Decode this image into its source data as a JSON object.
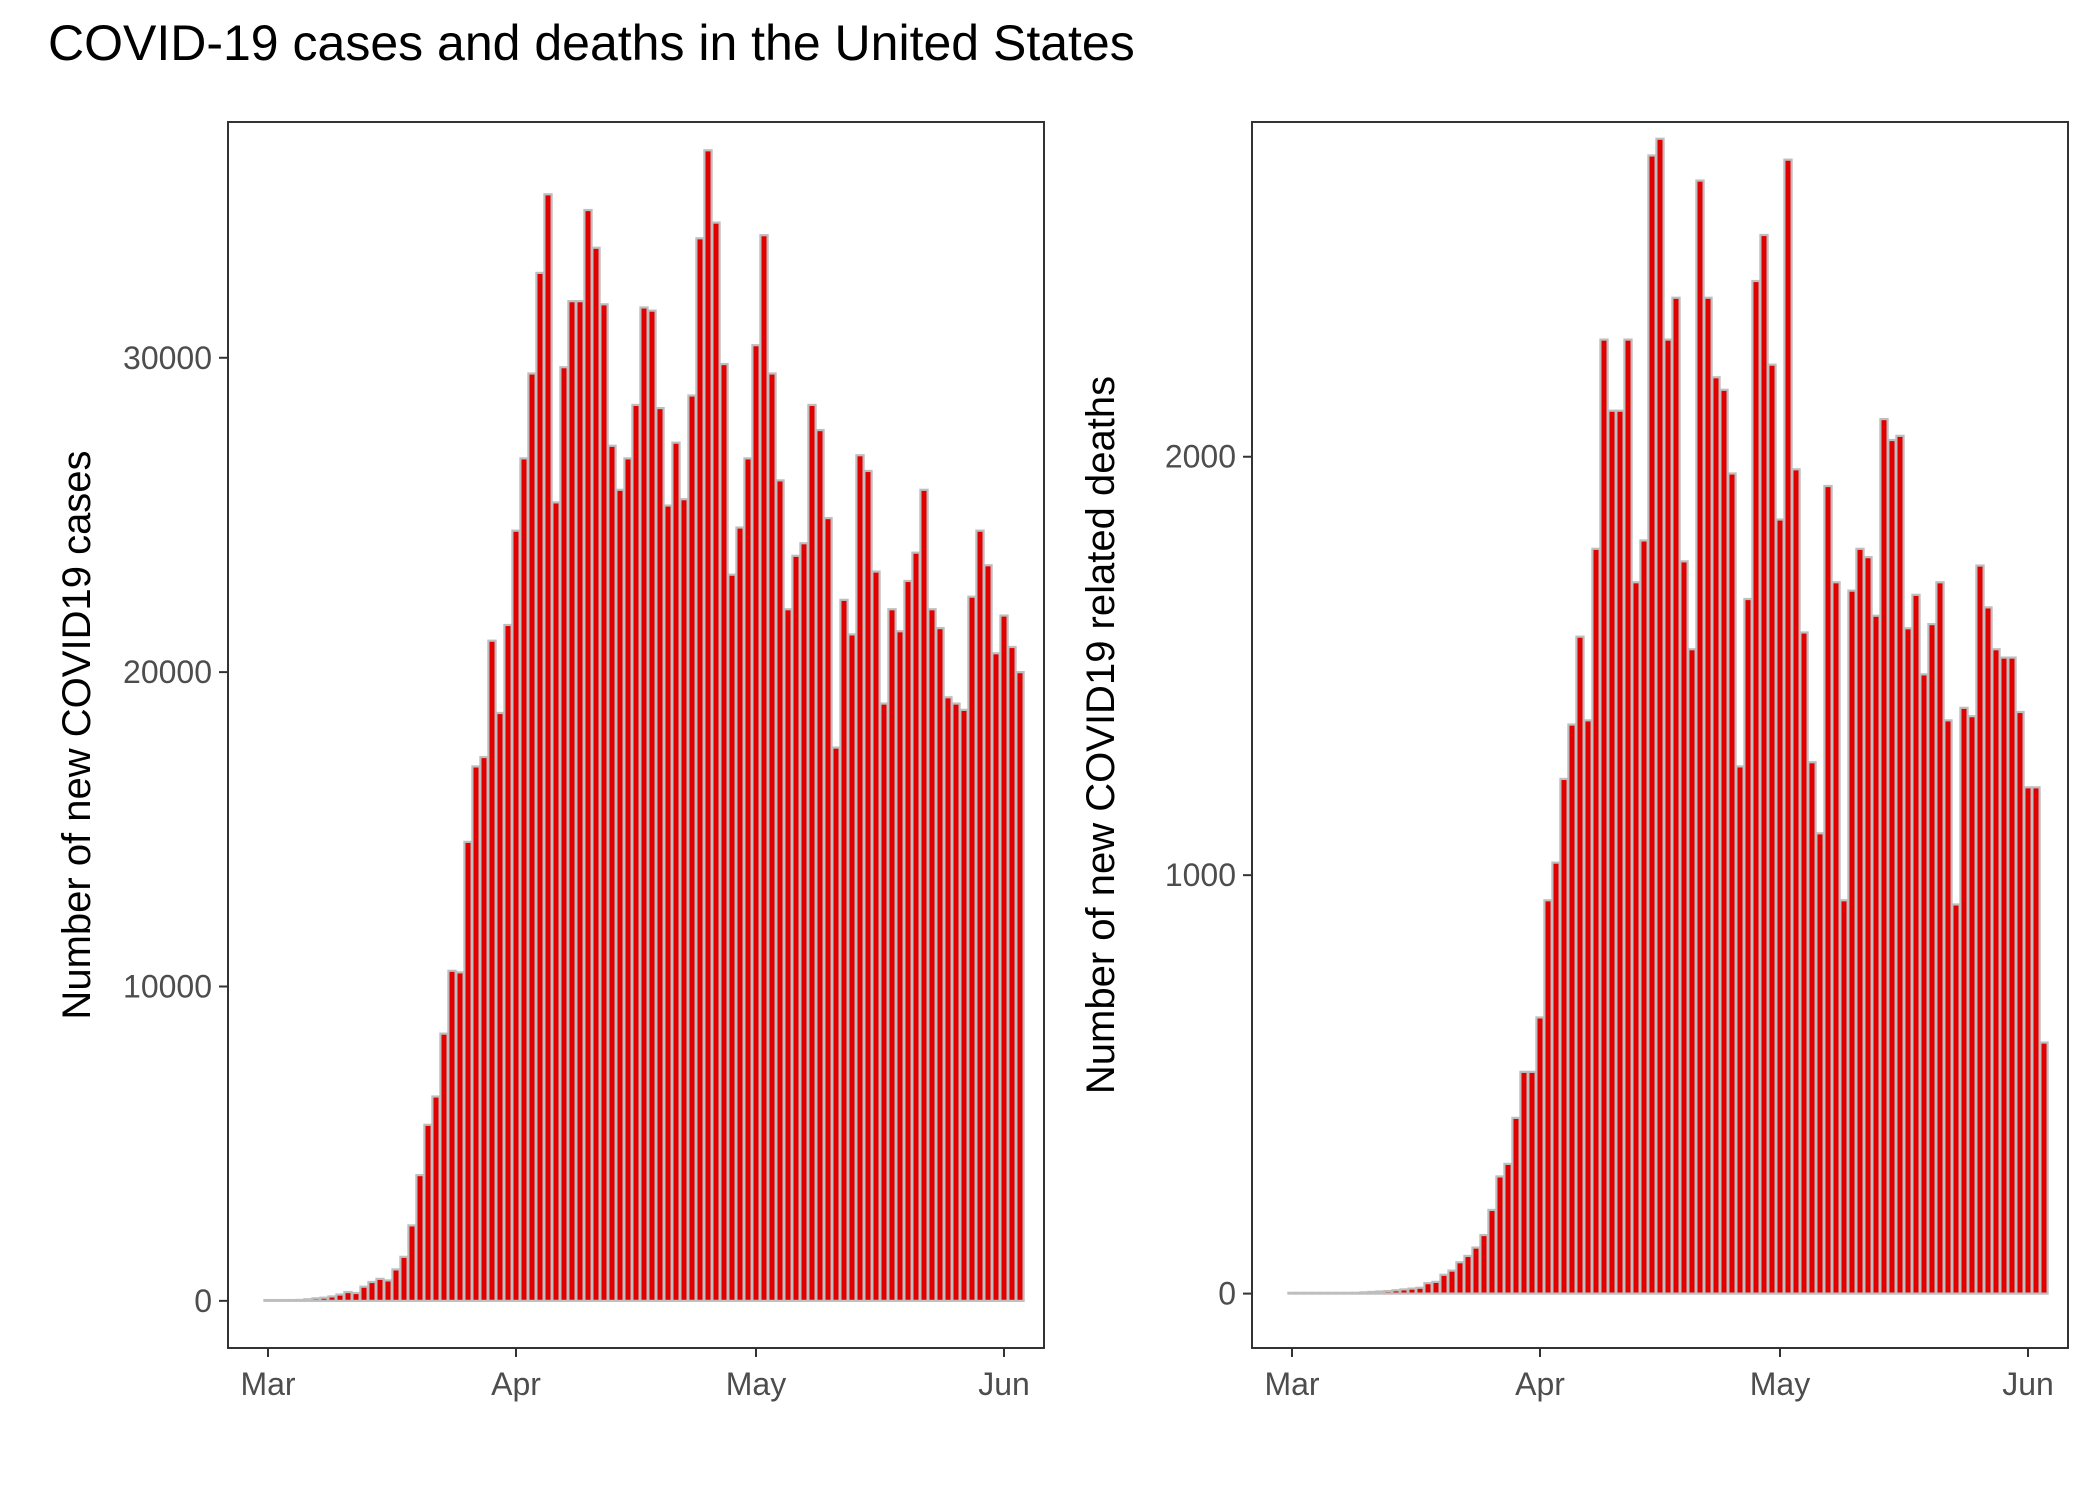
{
  "title": "COVID-19 cases and deaths in the United States",
  "style": {
    "bar_fill": "#e00000",
    "bar_outline": "#bebebe",
    "panel_border": "#333333",
    "tick_text": "#4d4d4d"
  },
  "chart_data": [
    {
      "type": "bar",
      "ylabel": "Number of new COVID19 cases",
      "ylim": [
        -1500,
        37500
      ],
      "xlim": [
        "2020-02-25",
        "2020-06-06"
      ],
      "yticks": [
        0,
        10000,
        20000,
        30000
      ],
      "ytick_labels": [
        "0",
        "10000",
        "20000",
        "30000"
      ],
      "xticks": [
        "2020-03-01",
        "2020-04-01",
        "2020-05-01",
        "2020-06-01"
      ],
      "xtick_labels": [
        "Mar",
        "Apr",
        "May",
        "Jun"
      ],
      "start_date": "2020-03-01",
      "values": [
        0,
        0,
        0,
        20,
        30,
        50,
        80,
        100,
        140,
        200,
        280,
        250,
        450,
        600,
        700,
        650,
        1000,
        1400,
        2400,
        4000,
        5600,
        6500,
        8500,
        10500,
        10450,
        14600,
        17000,
        17300,
        21000,
        18700,
        21500,
        24500,
        26800,
        29500,
        32700,
        35200,
        25400,
        29700,
        31800,
        31800,
        34700,
        33500,
        31700,
        27200,
        25800,
        26800,
        28500,
        31600,
        31500,
        28400,
        25300,
        27300,
        25500,
        28800,
        33800,
        36600,
        34300,
        29800,
        23100,
        24600,
        26800,
        30400,
        33900,
        29500,
        26100,
        22000,
        23700,
        24100,
        28500,
        27700,
        24900,
        17600,
        22300,
        21200,
        26900,
        26400,
        23200,
        19000,
        22000,
        21300,
        22900,
        23800,
        25800,
        22000,
        21400,
        19200,
        19000,
        18800,
        22400,
        24500,
        23400,
        20600,
        21800,
        20800,
        20000
      ]
    },
    {
      "type": "bar",
      "ylabel": "Number of new COVID19 related deaths",
      "ylim": [
        -130,
        2800
      ],
      "xlim": [
        "2020-02-25",
        "2020-06-06"
      ],
      "yticks": [
        0,
        1000,
        2000
      ],
      "ytick_labels": [
        "0",
        "1000",
        "2000"
      ],
      "xticks": [
        "2020-03-01",
        "2020-04-01",
        "2020-05-01",
        "2020-06-01"
      ],
      "xtick_labels": [
        "Mar",
        "Apr",
        "May",
        "Jun"
      ],
      "start_date": "2020-03-01",
      "values": [
        0,
        0,
        0,
        0,
        0,
        0,
        0,
        1,
        2,
        3,
        4,
        5,
        6,
        8,
        10,
        12,
        14,
        25,
        28,
        45,
        55,
        75,
        90,
        110,
        140,
        200,
        280,
        310,
        420,
        530,
        530,
        660,
        940,
        1030,
        1230,
        1360,
        1570,
        1370,
        1780,
        2280,
        2110,
        2110,
        2280,
        1700,
        1800,
        2720,
        2760,
        2280,
        2380,
        1750,
        1540,
        2660,
        2380,
        2190,
        2160,
        1960,
        1260,
        1660,
        2420,
        2530,
        2220,
        1850,
        2710,
        1970,
        1580,
        1270,
        1100,
        1930,
        1700,
        940,
        1680,
        1780,
        1760,
        1620,
        2090,
        2040,
        2050,
        1590,
        1670,
        1480,
        1600,
        1700,
        1370,
        930,
        1400,
        1380,
        1740,
        1640,
        1540,
        1520,
        1520,
        1390,
        1210,
        1210,
        600
      ]
    }
  ]
}
